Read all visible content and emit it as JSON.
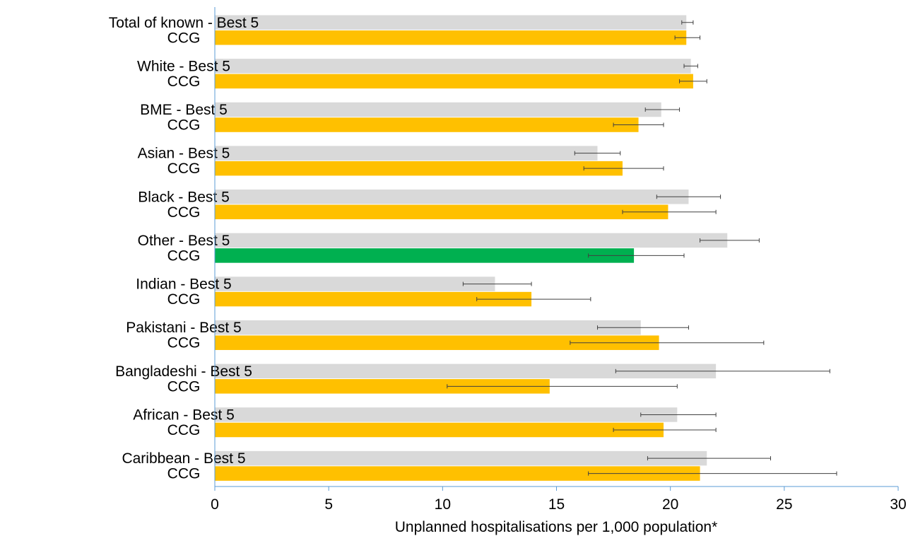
{
  "chart_data": {
    "type": "bar",
    "orientation": "horizontal",
    "xlabel": "Unplanned hospitalisations per 1,000 population*",
    "xlim": [
      0,
      30
    ],
    "xticks": [
      0,
      5,
      10,
      15,
      20,
      25,
      30
    ],
    "grid": false,
    "legend": "none",
    "colors": {
      "best5": "#d9d9d9",
      "ccg": "#ffc000",
      "ccg_highlight": "#00b050",
      "axis": "#5b9bd5",
      "error_bar": "#404040"
    },
    "groups": [
      {
        "name": "Total of known",
        "bars": [
          {
            "label": "Total of known - Best 5",
            "value": 20.7,
            "ci": [
              20.5,
              21.0
            ],
            "color": "best5"
          },
          {
            "label": "CCG",
            "value": 20.7,
            "ci": [
              20.2,
              21.3
            ],
            "color": "ccg"
          }
        ]
      },
      {
        "name": "White",
        "bars": [
          {
            "label": "White - Best 5",
            "value": 20.9,
            "ci": [
              20.6,
              21.2
            ],
            "color": "best5"
          },
          {
            "label": "CCG",
            "value": 21.0,
            "ci": [
              20.4,
              21.6
            ],
            "color": "ccg"
          }
        ]
      },
      {
        "name": "BME",
        "bars": [
          {
            "label": "BME - Best 5",
            "value": 19.6,
            "ci": [
              18.9,
              20.4
            ],
            "color": "best5"
          },
          {
            "label": "CCG",
            "value": 18.6,
            "ci": [
              17.5,
              19.7
            ],
            "color": "ccg"
          }
        ]
      },
      {
        "name": "Asian",
        "bars": [
          {
            "label": "Asian - Best 5",
            "value": 16.8,
            "ci": [
              15.8,
              17.8
            ],
            "color": "best5"
          },
          {
            "label": "CCG",
            "value": 17.9,
            "ci": [
              16.2,
              19.7
            ],
            "color": "ccg"
          }
        ]
      },
      {
        "name": "Black",
        "bars": [
          {
            "label": "Black - Best 5",
            "value": 20.8,
            "ci": [
              19.4,
              22.2
            ],
            "color": "best5"
          },
          {
            "label": "CCG",
            "value": 19.9,
            "ci": [
              17.9,
              22.0
            ],
            "color": "ccg"
          }
        ]
      },
      {
        "name": "Other",
        "bars": [
          {
            "label": "Other - Best 5",
            "value": 22.5,
            "ci": [
              21.3,
              23.9
            ],
            "color": "best5"
          },
          {
            "label": "CCG",
            "value": 18.4,
            "ci": [
              16.4,
              20.6
            ],
            "color": "ccg_highlight"
          }
        ]
      },
      {
        "name": "Indian",
        "bars": [
          {
            "label": "Indian - Best 5",
            "value": 12.3,
            "ci": [
              10.9,
              13.9
            ],
            "color": "best5"
          },
          {
            "label": "CCG",
            "value": 13.9,
            "ci": [
              11.5,
              16.5
            ],
            "color": "ccg"
          }
        ]
      },
      {
        "name": "Pakistani",
        "bars": [
          {
            "label": "Pakistani - Best 5",
            "value": 18.7,
            "ci": [
              16.8,
              20.8
            ],
            "color": "best5"
          },
          {
            "label": "CCG",
            "value": 19.5,
            "ci": [
              15.6,
              24.1
            ],
            "color": "ccg"
          }
        ]
      },
      {
        "name": "Bangladeshi",
        "bars": [
          {
            "label": "Bangladeshi - Best 5",
            "value": 22.0,
            "ci": [
              17.6,
              27.0
            ],
            "color": "best5"
          },
          {
            "label": "CCG",
            "value": 14.7,
            "ci": [
              10.2,
              20.3
            ],
            "color": "ccg"
          }
        ]
      },
      {
        "name": "African",
        "bars": [
          {
            "label": "African - Best 5",
            "value": 20.3,
            "ci": [
              18.7,
              22.0
            ],
            "color": "best5"
          },
          {
            "label": "CCG",
            "value": 19.7,
            "ci": [
              17.5,
              22.0
            ],
            "color": "ccg"
          }
        ]
      },
      {
        "name": "Caribbean",
        "bars": [
          {
            "label": "Caribbean - Best 5",
            "value": 21.6,
            "ci": [
              19.0,
              24.4
            ],
            "color": "best5"
          },
          {
            "label": "CCG",
            "value": 21.3,
            "ci": [
              16.4,
              27.3
            ],
            "color": "ccg"
          }
        ]
      }
    ]
  }
}
